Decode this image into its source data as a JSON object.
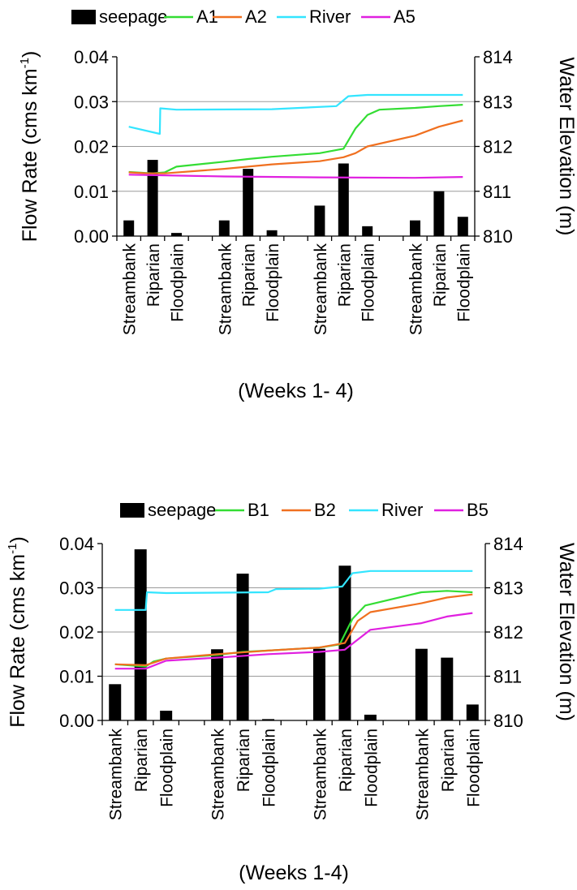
{
  "chart_data": [
    {
      "type": "bar",
      "categories": [
        "Streambank",
        "Riparian",
        "Floodplain",
        "Streambank",
        "Riparian",
        "Floodplain",
        "Streambank",
        "Riparian",
        "Floodplain",
        "Streambank",
        "Riparian",
        "Floodplain"
      ],
      "xlabel": "(Weeks 1- 4)",
      "ylabel": "Flow Rate (cms km",
      "ylabel_sup": "-1",
      "ylabel_close": ")",
      "y2label": "Water Elevation (m)",
      "ylim": [
        0,
        0.04
      ],
      "y2lim": [
        810,
        814
      ],
      "yticks": [
        "0.00",
        "0.01",
        "0.02",
        "0.03",
        "0.04"
      ],
      "y2ticks": [
        "810",
        "811",
        "812",
        "813",
        "814"
      ],
      "grid": true,
      "legend": [
        {
          "name": "seepage",
          "color": "#000000",
          "kind": "bar"
        },
        {
          "name": "A1",
          "color": "#33dd33",
          "kind": "line"
        },
        {
          "name": "A2",
          "color": "#f07020",
          "kind": "line"
        },
        {
          "name": "River",
          "color": "#33e5ff",
          "kind": "line"
        },
        {
          "name": "A5",
          "color": "#e020e0",
          "kind": "line"
        }
      ],
      "bars": {
        "name": "seepage",
        "values": [
          0.0035,
          0.017,
          0.0007,
          0.0035,
          0.015,
          0.0013,
          0.0068,
          0.0162,
          0.0022,
          0.0035,
          0.01,
          0.0043
        ]
      },
      "lines": [
        {
          "name": "A1",
          "color": "#33dd33",
          "axis": "right",
          "points": [
            [
              0,
              811.43
            ],
            [
              1,
              811.4
            ],
            [
              1.5,
              811.42
            ],
            [
              2,
              811.55
            ],
            [
              3,
              811.66
            ],
            [
              4,
              811.72
            ],
            [
              5,
              811.77
            ],
            [
              6,
              811.85
            ],
            [
              7,
              811.95
            ],
            [
              7.5,
              812.4
            ],
            [
              8,
              812.7
            ],
            [
              8.5,
              812.82
            ],
            [
              9,
              812.86
            ],
            [
              10,
              812.9
            ],
            [
              11,
              812.93
            ]
          ]
        },
        {
          "name": "A2",
          "color": "#f07020",
          "axis": "right",
          "points": [
            [
              0,
              811.42
            ],
            [
              0.8,
              811.4
            ],
            [
              1.5,
              811.4
            ],
            [
              3,
              811.5
            ],
            [
              5,
              811.6
            ],
            [
              6,
              811.67
            ],
            [
              7,
              811.76
            ],
            [
              7.5,
              811.85
            ],
            [
              8,
              812.0
            ],
            [
              9,
              812.24
            ],
            [
              10,
              812.44
            ],
            [
              11,
              812.58
            ]
          ]
        },
        {
          "name": "River",
          "color": "#33e5ff",
          "axis": "right",
          "points": [
            [
              0,
              812.44
            ],
            [
              1.3,
              812.28
            ],
            [
              1.32,
              812.85
            ],
            [
              2,
              812.82
            ],
            [
              5,
              812.83
            ],
            [
              6.7,
              812.9
            ],
            [
              7.2,
              813.12
            ],
            [
              8,
              813.15
            ],
            [
              11,
              813.15
            ]
          ]
        },
        {
          "name": "A5",
          "color": "#e020e0",
          "axis": "right",
          "points": [
            [
              0,
              811.37
            ],
            [
              3,
              811.33
            ],
            [
              6,
              811.31
            ],
            [
              9,
              811.3
            ],
            [
              11,
              811.32
            ]
          ]
        }
      ]
    },
    {
      "type": "bar",
      "categories": [
        "Streambank",
        "Riparian",
        "Floodplain",
        "Streambank",
        "Riparian",
        "Floodplain",
        "Streambank",
        "Riparian",
        "Floodplain",
        "Streambank",
        "Riparian",
        "Floodplain"
      ],
      "xlabel": "(Weeks 1-4)",
      "ylabel": "Flow Rate (cms km",
      "ylabel_sup": "-1",
      "ylabel_close": ")",
      "y2label": "Water Elevation (m)",
      "ylim": [
        0,
        0.04
      ],
      "y2lim": [
        810,
        814
      ],
      "yticks": [
        "0.00",
        "0.01",
        "0.02",
        "0.03",
        "0.04"
      ],
      "y2ticks": [
        "810",
        "811",
        "812",
        "813",
        "814"
      ],
      "grid": true,
      "legend": [
        {
          "name": "seepage",
          "color": "#000000",
          "kind": "bar"
        },
        {
          "name": "B1",
          "color": "#33dd33",
          "kind": "line"
        },
        {
          "name": "B2",
          "color": "#f07020",
          "kind": "line"
        },
        {
          "name": "River",
          "color": "#33e5ff",
          "kind": "line"
        },
        {
          "name": "B5",
          "color": "#e020e0",
          "kind": "line"
        }
      ],
      "bars": {
        "name": "seepage",
        "values": [
          0.0082,
          0.0387,
          0.0022,
          0.0161,
          0.0332,
          0.0003,
          0.0162,
          0.035,
          0.0013,
          0.0162,
          0.0142,
          0.0036
        ]
      },
      "lines": [
        {
          "name": "B1",
          "color": "#33dd33",
          "axis": "right",
          "points": [
            [
              0,
              811.27
            ],
            [
              1.2,
              811.22
            ],
            [
              1.5,
              811.33
            ],
            [
              2,
              811.4
            ],
            [
              3,
              811.48
            ],
            [
              4,
              811.55
            ],
            [
              5,
              811.58
            ],
            [
              6,
              811.65
            ],
            [
              6.8,
              811.72
            ],
            [
              7.3,
              812.3
            ],
            [
              7.8,
              812.6
            ],
            [
              9,
              812.9
            ],
            [
              10,
              812.93
            ],
            [
              11,
              812.9
            ]
          ]
        },
        {
          "name": "B2",
          "color": "#f07020",
          "axis": "right",
          "points": [
            [
              0,
              811.27
            ],
            [
              1.2,
              811.25
            ],
            [
              2,
              811.4
            ],
            [
              3,
              811.5
            ],
            [
              5,
              811.58
            ],
            [
              6,
              811.65
            ],
            [
              7,
              811.75
            ],
            [
              7.5,
              812.25
            ],
            [
              8,
              812.45
            ],
            [
              9,
              812.65
            ],
            [
              10,
              812.78
            ],
            [
              11,
              812.85
            ]
          ]
        },
        {
          "name": "River",
          "color": "#33e5ff",
          "axis": "right",
          "points": [
            [
              0,
              812.5
            ],
            [
              1.2,
              812.5
            ],
            [
              1.25,
              812.9
            ],
            [
              2,
              812.88
            ],
            [
              5,
              812.9
            ],
            [
              5.3,
              812.97
            ],
            [
              6,
              812.98
            ],
            [
              6.9,
              813.03
            ],
            [
              7.3,
              813.33
            ],
            [
              8,
              813.38
            ],
            [
              11,
              813.38
            ]
          ]
        },
        {
          "name": "B5",
          "color": "#e020e0",
          "axis": "right",
          "points": [
            [
              0,
              811.17
            ],
            [
              1.2,
              811.17
            ],
            [
              2,
              811.35
            ],
            [
              3,
              811.42
            ],
            [
              5,
              811.5
            ],
            [
              6,
              811.55
            ],
            [
              7,
              811.6
            ],
            [
              8,
              812.05
            ],
            [
              9,
              812.2
            ],
            [
              10,
              812.35
            ],
            [
              11,
              812.43
            ]
          ]
        }
      ]
    }
  ]
}
